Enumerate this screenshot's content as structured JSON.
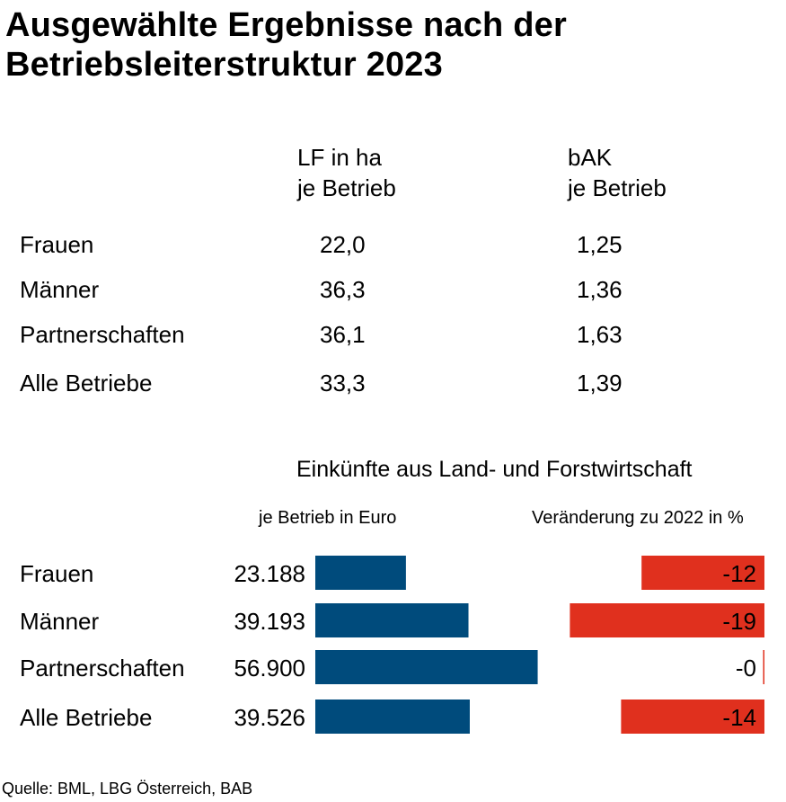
{
  "title": "Ausgewählte Ergebnisse nach der Betriebsleiterstruktur 2023",
  "table": {
    "col1_head_line1": "LF in ha",
    "col1_head_line2": "je Betrieb",
    "col2_head_line1": "bAK",
    "col2_head_line2": "je Betrieb",
    "rows": [
      {
        "label": "Frauen",
        "lf": "22,0",
        "bak": "1,25"
      },
      {
        "label": "Männer",
        "lf": "36,3",
        "bak": "1,36"
      },
      {
        "label": "Partnerschaften",
        "lf": "36,1",
        "bak": "1,63"
      },
      {
        "label": "Alle Betriebe",
        "lf": "33,3",
        "bak": "1,39"
      }
    ]
  },
  "chart_data": {
    "type": "bar",
    "title": "Einkünfte aus Land- und Forstwirtschaft",
    "categories": [
      "Frauen",
      "Männer",
      "Partnerschaften",
      "Alle Betriebe"
    ],
    "series": [
      {
        "name": "je Betrieb in Euro",
        "values": [
          23188,
          39193,
          56900,
          39526
        ],
        "labels": [
          "23.188",
          "39.193",
          "56.900",
          "39.526"
        ],
        "color": "#004b7c"
      },
      {
        "name": "Veränderung zu 2022 in %",
        "values": [
          -12,
          -19,
          -0.1,
          -14
        ],
        "labels": [
          "-12",
          "-19",
          "-0",
          "-14"
        ],
        "color": "#e0301e"
      }
    ],
    "grid": false,
    "legend": "none"
  },
  "source": "Quelle: BML, LBG Österreich, BAB"
}
